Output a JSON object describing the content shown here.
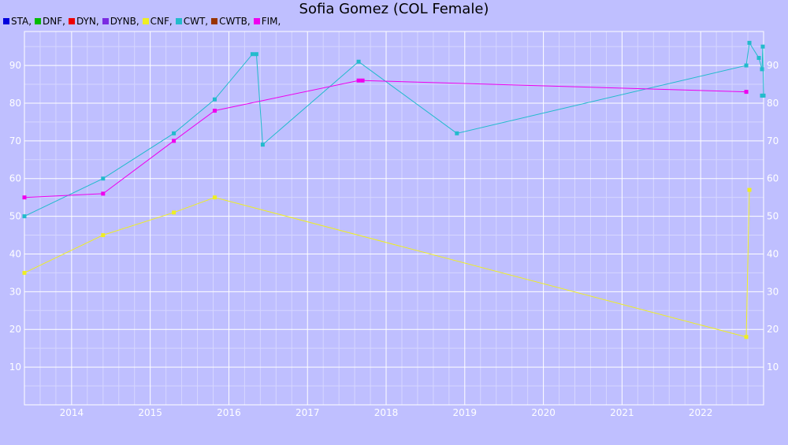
{
  "chart_data": {
    "type": "line",
    "title": "Sofia Gomez (COL Female)",
    "legend": [
      {
        "label": "STA,",
        "color": "#0000dd"
      },
      {
        "label": "DNF,",
        "color": "#00bb00"
      },
      {
        "label": "DYN,",
        "color": "#ee0000"
      },
      {
        "label": "DYNB,",
        "color": "#7a2be2"
      },
      {
        "label": "CNF,",
        "color": "#eeee22"
      },
      {
        "label": "CWT,",
        "color": "#22bbcc"
      },
      {
        "label": "CWTB,",
        "color": "#993300"
      },
      {
        "label": "FIM,",
        "color": "#ee00ee"
      }
    ],
    "legend_position": "top-left",
    "grid": true,
    "x_type": "year",
    "xlim": [
      2013.4,
      2022.8
    ],
    "ylim": [
      0,
      99
    ],
    "x_ticks": [
      2014,
      2015,
      2016,
      2017,
      2018,
      2019,
      2020,
      2021,
      2022
    ],
    "y_ticks": [
      10,
      20,
      30,
      40,
      50,
      60,
      70,
      80,
      90
    ],
    "series": [
      {
        "name": "CWT,",
        "color": "#22bbcc",
        "x": [
          2013.4,
          2014.4,
          2015.3,
          2015.82,
          2016.3,
          2016.35,
          2016.43,
          2017.65,
          2018.9,
          2022.58,
          2022.62,
          2022.74,
          2022.78,
          2022.79,
          2022.8,
          2022.78
        ],
        "y": [
          50,
          60,
          72,
          81,
          93,
          93,
          69,
          91,
          72,
          90,
          96,
          92,
          89,
          95,
          82,
          82
        ]
      },
      {
        "name": "FIM,",
        "color": "#ee00ee",
        "x": [
          2013.4,
          2014.4,
          2015.3,
          2015.82,
          2017.65,
          2017.7,
          2022.58
        ],
        "y": [
          55,
          56,
          70,
          78,
          86,
          86,
          83
        ]
      },
      {
        "name": "CNF,",
        "color": "#eeee22",
        "x": [
          2013.4,
          2014.4,
          2015.3,
          2015.82,
          2022.58,
          2022.62
        ],
        "y": [
          35,
          45,
          51,
          55,
          18,
          57
        ]
      }
    ]
  }
}
